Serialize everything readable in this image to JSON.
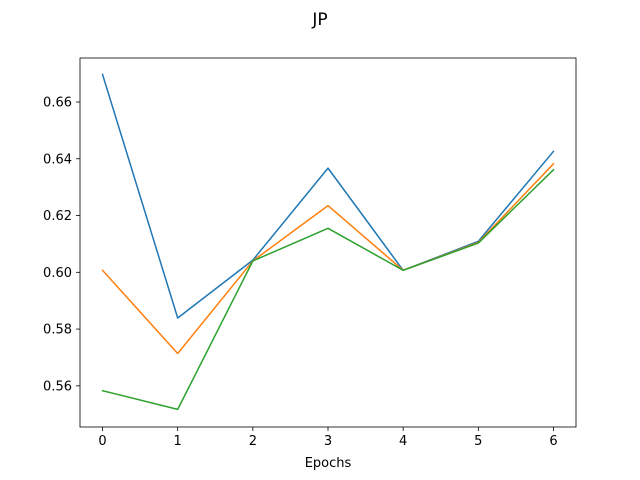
{
  "chart_data": {
    "type": "line",
    "title": "JP",
    "xlabel": "Epochs",
    "ylabel": "",
    "x": [
      0,
      1,
      2,
      3,
      4,
      5,
      6
    ],
    "xticks": [
      "0",
      "1",
      "2",
      "3",
      "4",
      "5",
      "6"
    ],
    "yticks": [
      "0.56",
      "0.58",
      "0.60",
      "0.62",
      "0.64",
      "0.66"
    ],
    "xlim": [
      -0.3,
      6.3
    ],
    "ylim": [
      0.5455,
      0.6755
    ],
    "grid": false,
    "legend": "none",
    "series": [
      {
        "color": "#1f77b4",
        "values": [
          0.6697,
          0.5839,
          0.6043,
          0.6367,
          0.6007,
          0.6109,
          0.6426
        ]
      },
      {
        "color": "#ff7f0e",
        "values": [
          0.6007,
          0.5714,
          0.604,
          0.6235,
          0.6007,
          0.6105,
          0.6382
        ]
      },
      {
        "color": "#2ca02c",
        "values": [
          0.5583,
          0.5517,
          0.604,
          0.6155,
          0.6007,
          0.6103,
          0.6361
        ]
      }
    ]
  }
}
